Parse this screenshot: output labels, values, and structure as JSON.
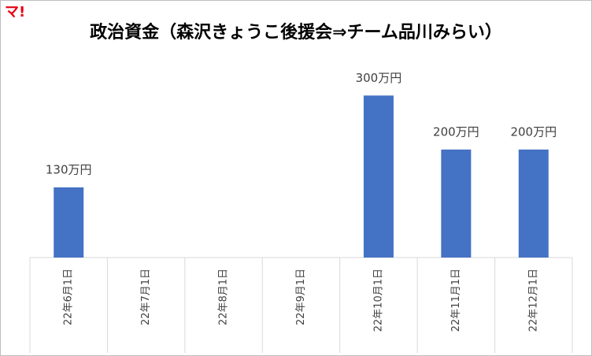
{
  "logo": "マ!",
  "chart_data": {
    "type": "bar",
    "title": "政治資金（森沢きょうこ後援会⇒チーム品川みらい）",
    "categories": [
      "22年6月1日",
      "22年7月1日",
      "22年8月1日",
      "22年9月1日",
      "22年10月1日",
      "22年11月1日",
      "22年12月1日"
    ],
    "values": [
      130,
      null,
      null,
      null,
      300,
      200,
      200
    ],
    "value_labels": [
      "130万円",
      null,
      null,
      null,
      "300万円",
      "200万円",
      "200万円"
    ],
    "color": "#4472c4",
    "ylim": [
      0,
      350
    ]
  }
}
